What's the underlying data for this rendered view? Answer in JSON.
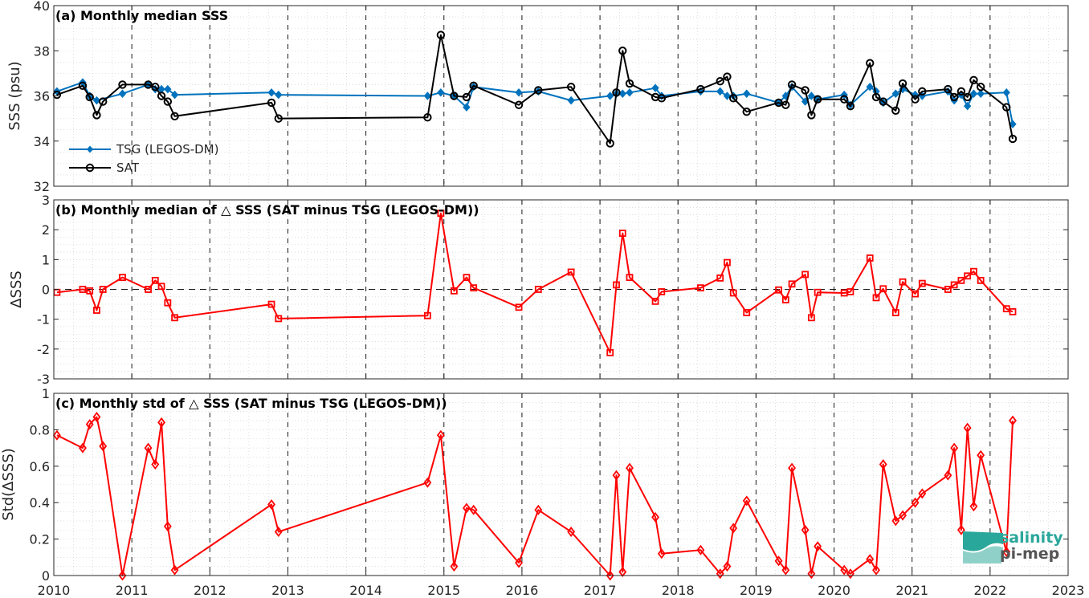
{
  "logo": {
    "line1": "salinity",
    "line2": "pi-mep"
  },
  "colors": {
    "tsg": "#0072bd",
    "sat": "#000000",
    "delta": "#ff0000",
    "frame": "#262626"
  },
  "chart_data": [
    {
      "type": "line",
      "title": "(a) Monthly median SSS",
      "ylabel": "SSS (psu)",
      "xlim": [
        2010,
        2023
      ],
      "ylim": [
        32,
        40
      ],
      "xticks": [
        2010,
        2011,
        2012,
        2013,
        2014,
        2015,
        2016,
        2017,
        2018,
        2019,
        2020,
        2021,
        2022,
        2023
      ],
      "yticks": [
        32,
        34,
        36,
        38,
        40
      ],
      "grid": "dotted",
      "legend": "lower-left",
      "series": [
        {
          "name": "TSG (LEGOS-DM)",
          "marker": "diamond-filled",
          "x": [
            2010.04,
            2010.37,
            2010.46,
            2010.55,
            2010.88,
            2011.21,
            2011.3,
            2011.38,
            2011.46,
            2011.55,
            2012.79,
            2012.88,
            2014.79,
            2014.96,
            2015.13,
            2015.29,
            2015.38,
            2015.96,
            2016.21,
            2016.63,
            2017.13,
            2017.21,
            2017.29,
            2017.38,
            2017.71,
            2017.79,
            2018.29,
            2018.54,
            2018.63,
            2018.71,
            2018.88,
            2019.29,
            2019.38,
            2019.46,
            2019.63,
            2019.71,
            2019.79,
            2020.13,
            2020.21,
            2020.46,
            2020.54,
            2020.63,
            2020.79,
            2020.88,
            2021.04,
            2021.13,
            2021.46,
            2021.54,
            2021.63,
            2021.71,
            2021.79,
            2021.88,
            2022.21,
            2022.29
          ],
          "y": [
            36.2,
            36.6,
            36.0,
            35.8,
            36.1,
            36.5,
            36.3,
            36.3,
            36.3,
            36.05,
            36.15,
            36.05,
            36.0,
            36.15,
            36.0,
            35.5,
            36.4,
            36.15,
            36.2,
            35.8,
            36.0,
            36.1,
            36.1,
            36.15,
            36.35,
            36.0,
            36.2,
            36.2,
            36.0,
            36.0,
            36.1,
            35.7,
            36.0,
            36.4,
            35.75,
            36.0,
            35.85,
            36.05,
            35.6,
            36.4,
            36.2,
            35.7,
            36.1,
            36.3,
            36.05,
            36.0,
            36.2,
            35.8,
            36.05,
            35.55,
            36.1,
            36.1,
            36.15,
            34.75
          ]
        },
        {
          "name": "SAT",
          "marker": "circle-open",
          "x": [
            2010.04,
            2010.37,
            2010.46,
            2010.55,
            2010.63,
            2010.88,
            2011.21,
            2011.3,
            2011.38,
            2011.46,
            2011.55,
            2012.79,
            2012.88,
            2014.79,
            2014.96,
            2015.13,
            2015.29,
            2015.38,
            2015.96,
            2016.21,
            2016.63,
            2017.13,
            2017.21,
            2017.29,
            2017.38,
            2017.71,
            2017.79,
            2018.29,
            2018.54,
            2018.63,
            2018.71,
            2018.88,
            2019.29,
            2019.38,
            2019.46,
            2019.63,
            2019.71,
            2019.79,
            2020.13,
            2020.21,
            2020.46,
            2020.54,
            2020.63,
            2020.79,
            2020.88,
            2021.04,
            2021.13,
            2021.46,
            2021.54,
            2021.63,
            2021.71,
            2021.79,
            2021.88,
            2022.21,
            2022.29
          ],
          "y": [
            36.05,
            36.45,
            35.95,
            35.15,
            35.75,
            36.5,
            36.5,
            36.4,
            36.0,
            35.75,
            35.1,
            35.7,
            35.0,
            35.05,
            38.7,
            36.0,
            35.95,
            36.45,
            35.6,
            36.25,
            36.4,
            33.9,
            36.15,
            38.0,
            36.55,
            35.95,
            35.9,
            36.3,
            36.65,
            36.85,
            35.9,
            35.3,
            35.7,
            35.6,
            36.5,
            36.25,
            35.15,
            35.85,
            35.85,
            35.55,
            37.45,
            35.95,
            35.75,
            35.35,
            36.55,
            35.85,
            36.2,
            36.3,
            35.95,
            36.2,
            35.95,
            36.7,
            36.4,
            35.5,
            34.1
          ]
        }
      ]
    },
    {
      "type": "line",
      "title": "(b) Monthly median of △ SSS (SAT minus TSG (LEGOS-DM))",
      "ylabel": "ΔSSS",
      "xlim": [
        2010,
        2023
      ],
      "ylim": [
        -3,
        3
      ],
      "xticks": [
        2010,
        2011,
        2012,
        2013,
        2014,
        2015,
        2016,
        2017,
        2018,
        2019,
        2020,
        2021,
        2022,
        2023
      ],
      "yticks": [
        -3,
        -2,
        -1,
        0,
        1,
        2,
        3
      ],
      "grid": "dotted",
      "reference_line": 0,
      "series": [
        {
          "marker": "square-open",
          "x": [
            2010.04,
            2010.37,
            2010.46,
            2010.55,
            2010.63,
            2010.88,
            2011.21,
            2011.3,
            2011.38,
            2011.46,
            2011.55,
            2012.79,
            2012.88,
            2014.79,
            2014.96,
            2015.13,
            2015.29,
            2015.38,
            2015.96,
            2016.21,
            2016.63,
            2017.13,
            2017.21,
            2017.29,
            2017.38,
            2017.71,
            2017.79,
            2018.29,
            2018.54,
            2018.63,
            2018.71,
            2018.88,
            2019.29,
            2019.38,
            2019.46,
            2019.63,
            2019.71,
            2019.79,
            2020.13,
            2020.21,
            2020.46,
            2020.54,
            2020.63,
            2020.79,
            2020.88,
            2021.04,
            2021.13,
            2021.46,
            2021.54,
            2021.63,
            2021.71,
            2021.79,
            2021.88,
            2022.21,
            2022.29
          ],
          "y": [
            -0.1,
            0.0,
            -0.05,
            -0.7,
            0.0,
            0.4,
            0.0,
            0.3,
            0.1,
            -0.45,
            -0.95,
            -0.5,
            -0.98,
            -0.88,
            2.55,
            -0.05,
            0.4,
            0.05,
            -0.6,
            0.0,
            0.58,
            -2.12,
            0.15,
            1.88,
            0.4,
            -0.4,
            -0.08,
            0.05,
            0.38,
            0.9,
            -0.12,
            -0.78,
            -0.02,
            -0.35,
            0.18,
            0.5,
            -0.95,
            -0.1,
            -0.12,
            -0.08,
            1.05,
            -0.28,
            0.02,
            -0.78,
            0.25,
            -0.15,
            0.2,
            0.0,
            0.15,
            0.3,
            0.45,
            0.6,
            0.3,
            -0.65,
            -0.75
          ]
        }
      ]
    },
    {
      "type": "line",
      "title": "(c) Monthly std of △ SSS (SAT minus TSG (LEGOS-DM))",
      "ylabel": "Std(ΔSSS)",
      "xlim": [
        2010,
        2023
      ],
      "ylim": [
        0,
        1
      ],
      "xticks": [
        2010,
        2011,
        2012,
        2013,
        2014,
        2015,
        2016,
        2017,
        2018,
        2019,
        2020,
        2021,
        2022,
        2023
      ],
      "yticks": [
        0,
        0.2,
        0.4,
        0.6,
        0.8,
        1
      ],
      "grid": "dotted",
      "series": [
        {
          "marker": "diamond-open",
          "x": [
            2010.04,
            2010.37,
            2010.46,
            2010.55,
            2010.63,
            2010.88,
            2011.21,
            2011.3,
            2011.38,
            2011.46,
            2011.55,
            2012.79,
            2012.88,
            2014.79,
            2014.96,
            2015.13,
            2015.29,
            2015.38,
            2015.96,
            2016.21,
            2016.63,
            2017.13,
            2017.21,
            2017.29,
            2017.38,
            2017.71,
            2017.79,
            2018.29,
            2018.54,
            2018.63,
            2018.71,
            2018.88,
            2019.29,
            2019.38,
            2019.46,
            2019.63,
            2019.71,
            2019.79,
            2020.13,
            2020.21,
            2020.46,
            2020.54,
            2020.63,
            2020.79,
            2020.88,
            2021.04,
            2021.13,
            2021.46,
            2021.54,
            2021.63,
            2021.71,
            2021.79,
            2021.88,
            2022.21,
            2022.29
          ],
          "y": [
            0.77,
            0.7,
            0.83,
            0.87,
            0.71,
            0.0,
            0.7,
            0.61,
            0.84,
            0.27,
            0.03,
            0.39,
            0.24,
            0.51,
            0.77,
            0.05,
            0.37,
            0.36,
            0.07,
            0.36,
            0.24,
            0.0,
            0.55,
            0.02,
            0.59,
            0.32,
            0.12,
            0.14,
            0.01,
            0.05,
            0.26,
            0.41,
            0.08,
            0.03,
            0.59,
            0.25,
            0.01,
            0.16,
            0.03,
            0.01,
            0.09,
            0.03,
            0.61,
            0.3,
            0.33,
            0.4,
            0.45,
            0.55,
            0.7,
            0.25,
            0.81,
            0.38,
            0.66,
            0.13,
            0.85
          ]
        }
      ]
    }
  ]
}
